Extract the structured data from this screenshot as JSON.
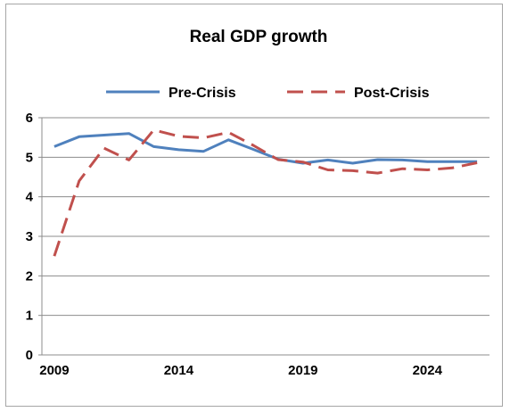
{
  "chart_data": {
    "type": "line",
    "title": "Real GDP growth",
    "xlabel": "",
    "ylabel": "",
    "xlim": [
      2008.5,
      2026.5
    ],
    "ylim": [
      0,
      6
    ],
    "x_ticks": [
      2009,
      2014,
      2019,
      2024
    ],
    "y_ticks": [
      0,
      1,
      2,
      3,
      4,
      5,
      6
    ],
    "grid": "horizontal",
    "legend_position": "top",
    "x": [
      2009,
      2010,
      2011,
      2012,
      2013,
      2014,
      2015,
      2016,
      2017,
      2018,
      2019,
      2020,
      2021,
      2022,
      2023,
      2024,
      2025,
      2026
    ],
    "series": [
      {
        "name": "Pre-Crisis",
        "color": "#4f81bd",
        "style": "solid",
        "values": [
          5.27,
          5.52,
          5.56,
          5.6,
          5.27,
          5.19,
          5.15,
          5.44,
          5.2,
          4.95,
          4.85,
          4.93,
          4.85,
          4.94,
          4.93,
          4.89,
          4.89,
          4.89
        ]
      },
      {
        "name": "Post-Crisis",
        "color": "#c0504d",
        "style": "dashed",
        "values": [
          2.5,
          4.4,
          5.23,
          4.93,
          5.69,
          5.53,
          5.49,
          5.63,
          5.3,
          4.94,
          4.88,
          4.68,
          4.66,
          4.6,
          4.71,
          4.68,
          4.73,
          4.86
        ]
      }
    ]
  }
}
